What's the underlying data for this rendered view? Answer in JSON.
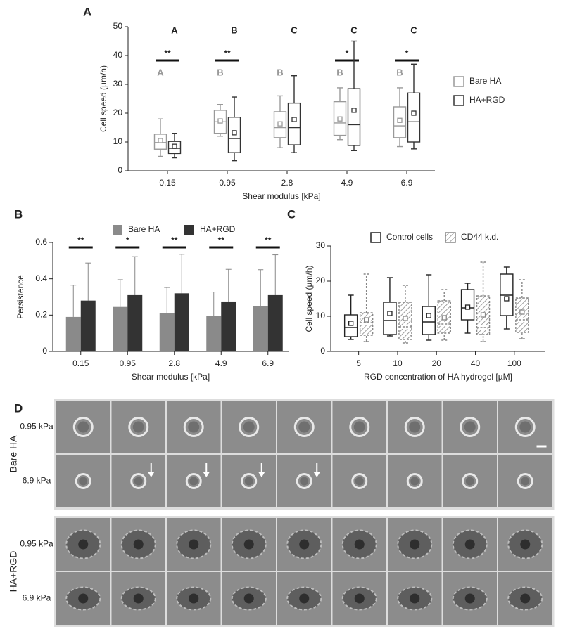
{
  "chart_data": [
    {
      "type": "box",
      "panel": "A",
      "ylabel": "Cell speed (µm/h)",
      "xlabel": "Shear modulus [kPa]",
      "categories": [
        "0.15",
        "0.95",
        "2.8",
        "4.9",
        "6.9"
      ],
      "ylim": [
        0,
        50
      ],
      "yticks": [
        0,
        10,
        20,
        30,
        40,
        50
      ],
      "legend": "right",
      "significance": [
        "**",
        "**",
        null,
        "*",
        "*"
      ],
      "series": [
        {
          "name": "Bare HA",
          "color": "#999999",
          "letters": [
            "A",
            "B",
            "B",
            "B",
            "B"
          ],
          "low": [
            5,
            12,
            8,
            10.8,
            8.4
          ],
          "q1": [
            7.5,
            13,
            11.5,
            12.3,
            11.5
          ],
          "median": [
            9.8,
            17,
            15,
            16.6,
            15.6
          ],
          "q3": [
            12.7,
            21,
            20.5,
            24,
            22.2
          ],
          "high": [
            18,
            23,
            26,
            28.8,
            28.8
          ],
          "mean": [
            10.5,
            17.3,
            16.3,
            18,
            17.5
          ]
        },
        {
          "name": "HA+RGD",
          "color": "#333333",
          "letters": [
            "A",
            "B",
            "C",
            "C",
            "C"
          ],
          "low": [
            4.5,
            3.5,
            6.3,
            7,
            7.6
          ],
          "q1": [
            6,
            6.3,
            9,
            8.8,
            10
          ],
          "median": [
            7.8,
            11.2,
            15,
            16,
            17
          ],
          "q3": [
            10.2,
            18.6,
            23.5,
            28.5,
            27
          ],
          "high": [
            13,
            25.6,
            33,
            45,
            37
          ],
          "mean": [
            8.5,
            13.2,
            17.8,
            21,
            20
          ]
        }
      ]
    },
    {
      "type": "bar",
      "panel": "B",
      "ylabel": "Persistence",
      "xlabel": "Shear modulus [kPa]",
      "categories": [
        "0.15",
        "0.95",
        "2.8",
        "4.9",
        "6.9"
      ],
      "ylim": [
        0,
        0.6
      ],
      "yticks": [
        0,
        0.2,
        0.4,
        0.6
      ],
      "legend": "top",
      "significance": [
        "**",
        "*",
        "**",
        "**",
        "**"
      ],
      "series": [
        {
          "name": "Bare HA",
          "color": "#8a8a8a",
          "values": [
            0.19,
            0.245,
            0.21,
            0.195,
            0.25
          ],
          "errors": [
            0.175,
            0.15,
            0.142,
            0.132,
            0.2
          ]
        },
        {
          "name": "HA+RGD",
          "color": "#333333",
          "values": [
            0.28,
            0.31,
            0.32,
            0.275,
            0.31
          ],
          "errors": [
            0.207,
            0.212,
            0.215,
            0.177,
            0.222
          ]
        }
      ]
    },
    {
      "type": "box",
      "panel": "C",
      "ylabel": "Cell speed (µm/h)",
      "xlabel": "RGD concentration of HA hydrogel [µM]",
      "categories": [
        "5",
        "10",
        "20",
        "40",
        "100"
      ],
      "ylim": [
        0,
        30
      ],
      "yticks": [
        0,
        10,
        20,
        30
      ],
      "legend": "top",
      "series": [
        {
          "name": "Control cells",
          "color": "#222222",
          "hatch": false,
          "low": [
            3.4,
            4.4,
            3.2,
            5.2,
            6.4
          ],
          "q1": [
            4.2,
            4.8,
            4.8,
            9,
            10.2
          ],
          "median": [
            6.8,
            8.8,
            8.4,
            12.4,
            16
          ],
          "q3": [
            10.4,
            14,
            12.8,
            17.6,
            22
          ],
          "high": [
            16,
            21,
            21.8,
            19.4,
            24
          ],
          "mean": [
            8,
            10.8,
            10.2,
            12.6,
            15
          ]
        },
        {
          "name": "CD44 k.d.",
          "color": "#888888",
          "hatch": true,
          "low": [
            2.8,
            2.4,
            3.2,
            2.8,
            3.6
          ],
          "q1": [
            4.6,
            3.4,
            5.2,
            4.8,
            5.4
          ],
          "median": [
            8.2,
            7,
            7.8,
            6.8,
            9
          ],
          "q3": [
            11,
            14,
            14.4,
            15.8,
            15.2
          ],
          "high": [
            22,
            18.8,
            17.6,
            25.4,
            20.4
          ],
          "mean": [
            9,
            9.4,
            9.6,
            10.4,
            11.2
          ]
        }
      ]
    }
  ],
  "panel_d": {
    "label": "D",
    "groups": [
      {
        "name": "Bare HA",
        "rows": [
          "0.95 kPa",
          "6.9 kPa"
        ]
      },
      {
        "name": "HA+RGD",
        "rows": [
          "0.95 kPa",
          "6.9 kPa"
        ]
      }
    ]
  }
}
